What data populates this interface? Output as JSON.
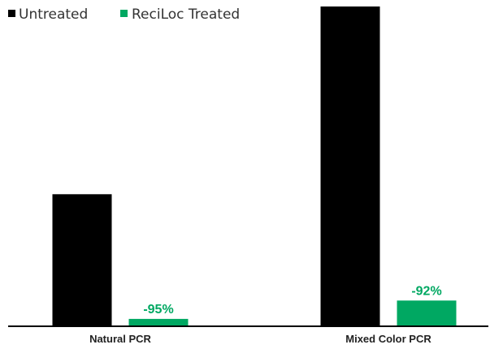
{
  "chart_data": {
    "type": "bar",
    "categories": [
      "Natural PCR",
      "Mixed Color PCR"
    ],
    "series": [
      {
        "name": "Untreated",
        "color": "#000000",
        "values": [
          100,
          243
        ]
      },
      {
        "name": "ReciLoc Treated",
        "color": "#00a862",
        "values": [
          5,
          19
        ]
      }
    ],
    "data_labels": [
      null,
      null,
      "-95%",
      "-92%"
    ],
    "title": "",
    "xlabel": "",
    "ylabel": "",
    "ylim": [
      0,
      243
    ],
    "grid": false,
    "legend_position": "top-left"
  }
}
